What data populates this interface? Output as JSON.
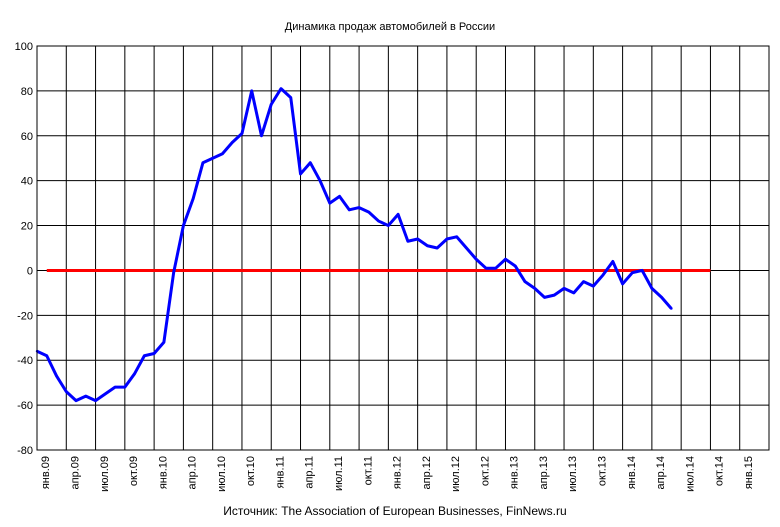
{
  "chart_data": {
    "type": "line",
    "title": "Динамика продаж автомобилей в России",
    "source": "Источник: The Association of European Businesses, FinNews.ru",
    "xlabel": "",
    "ylabel": "",
    "ylim": [
      -80,
      100
    ],
    "yticks": [
      -80,
      -60,
      -40,
      -20,
      0,
      20,
      40,
      60,
      80,
      100
    ],
    "grid": true,
    "x_tick_labels": [
      "янв.09",
      "апр.09",
      "июл.09",
      "окт.09",
      "янв.10",
      "апр.10",
      "июл.10",
      "окт.10",
      "янв.11",
      "апр.11",
      "июл.11",
      "окт.11",
      "янв.12",
      "апр.12",
      "июл.12",
      "окт.12",
      "янв.13",
      "апр.13",
      "июл.13",
      "окт.13",
      "янв.14",
      "апр.14",
      "июл.14",
      "окт.14",
      "янв.15"
    ],
    "colors": {
      "series": "#0000ff",
      "zero_line": "#ff0000",
      "grid": "#000000"
    },
    "series": [
      {
        "color": "#0000ff",
        "values": [
          -36,
          -38,
          -47,
          -54,
          -58,
          -56,
          -58,
          -55,
          -52,
          -52,
          -46,
          -38,
          -37,
          -32,
          -1,
          20,
          32,
          48,
          50,
          52,
          57,
          61,
          80,
          60,
          74,
          81,
          77,
          43,
          48,
          40,
          30,
          33,
          27,
          28,
          26,
          22,
          20,
          25,
          13,
          14,
          11,
          10,
          14,
          15,
          10,
          5,
          1,
          1,
          5,
          2,
          -5,
          -8,
          -12,
          -11,
          -8,
          -10,
          -5,
          -7,
          -2,
          4,
          -6,
          -1,
          0,
          -8,
          -12,
          -17
        ]
      }
    ],
    "zero_line": {
      "value": 0,
      "start_index": 1,
      "end_index": 69
    }
  }
}
